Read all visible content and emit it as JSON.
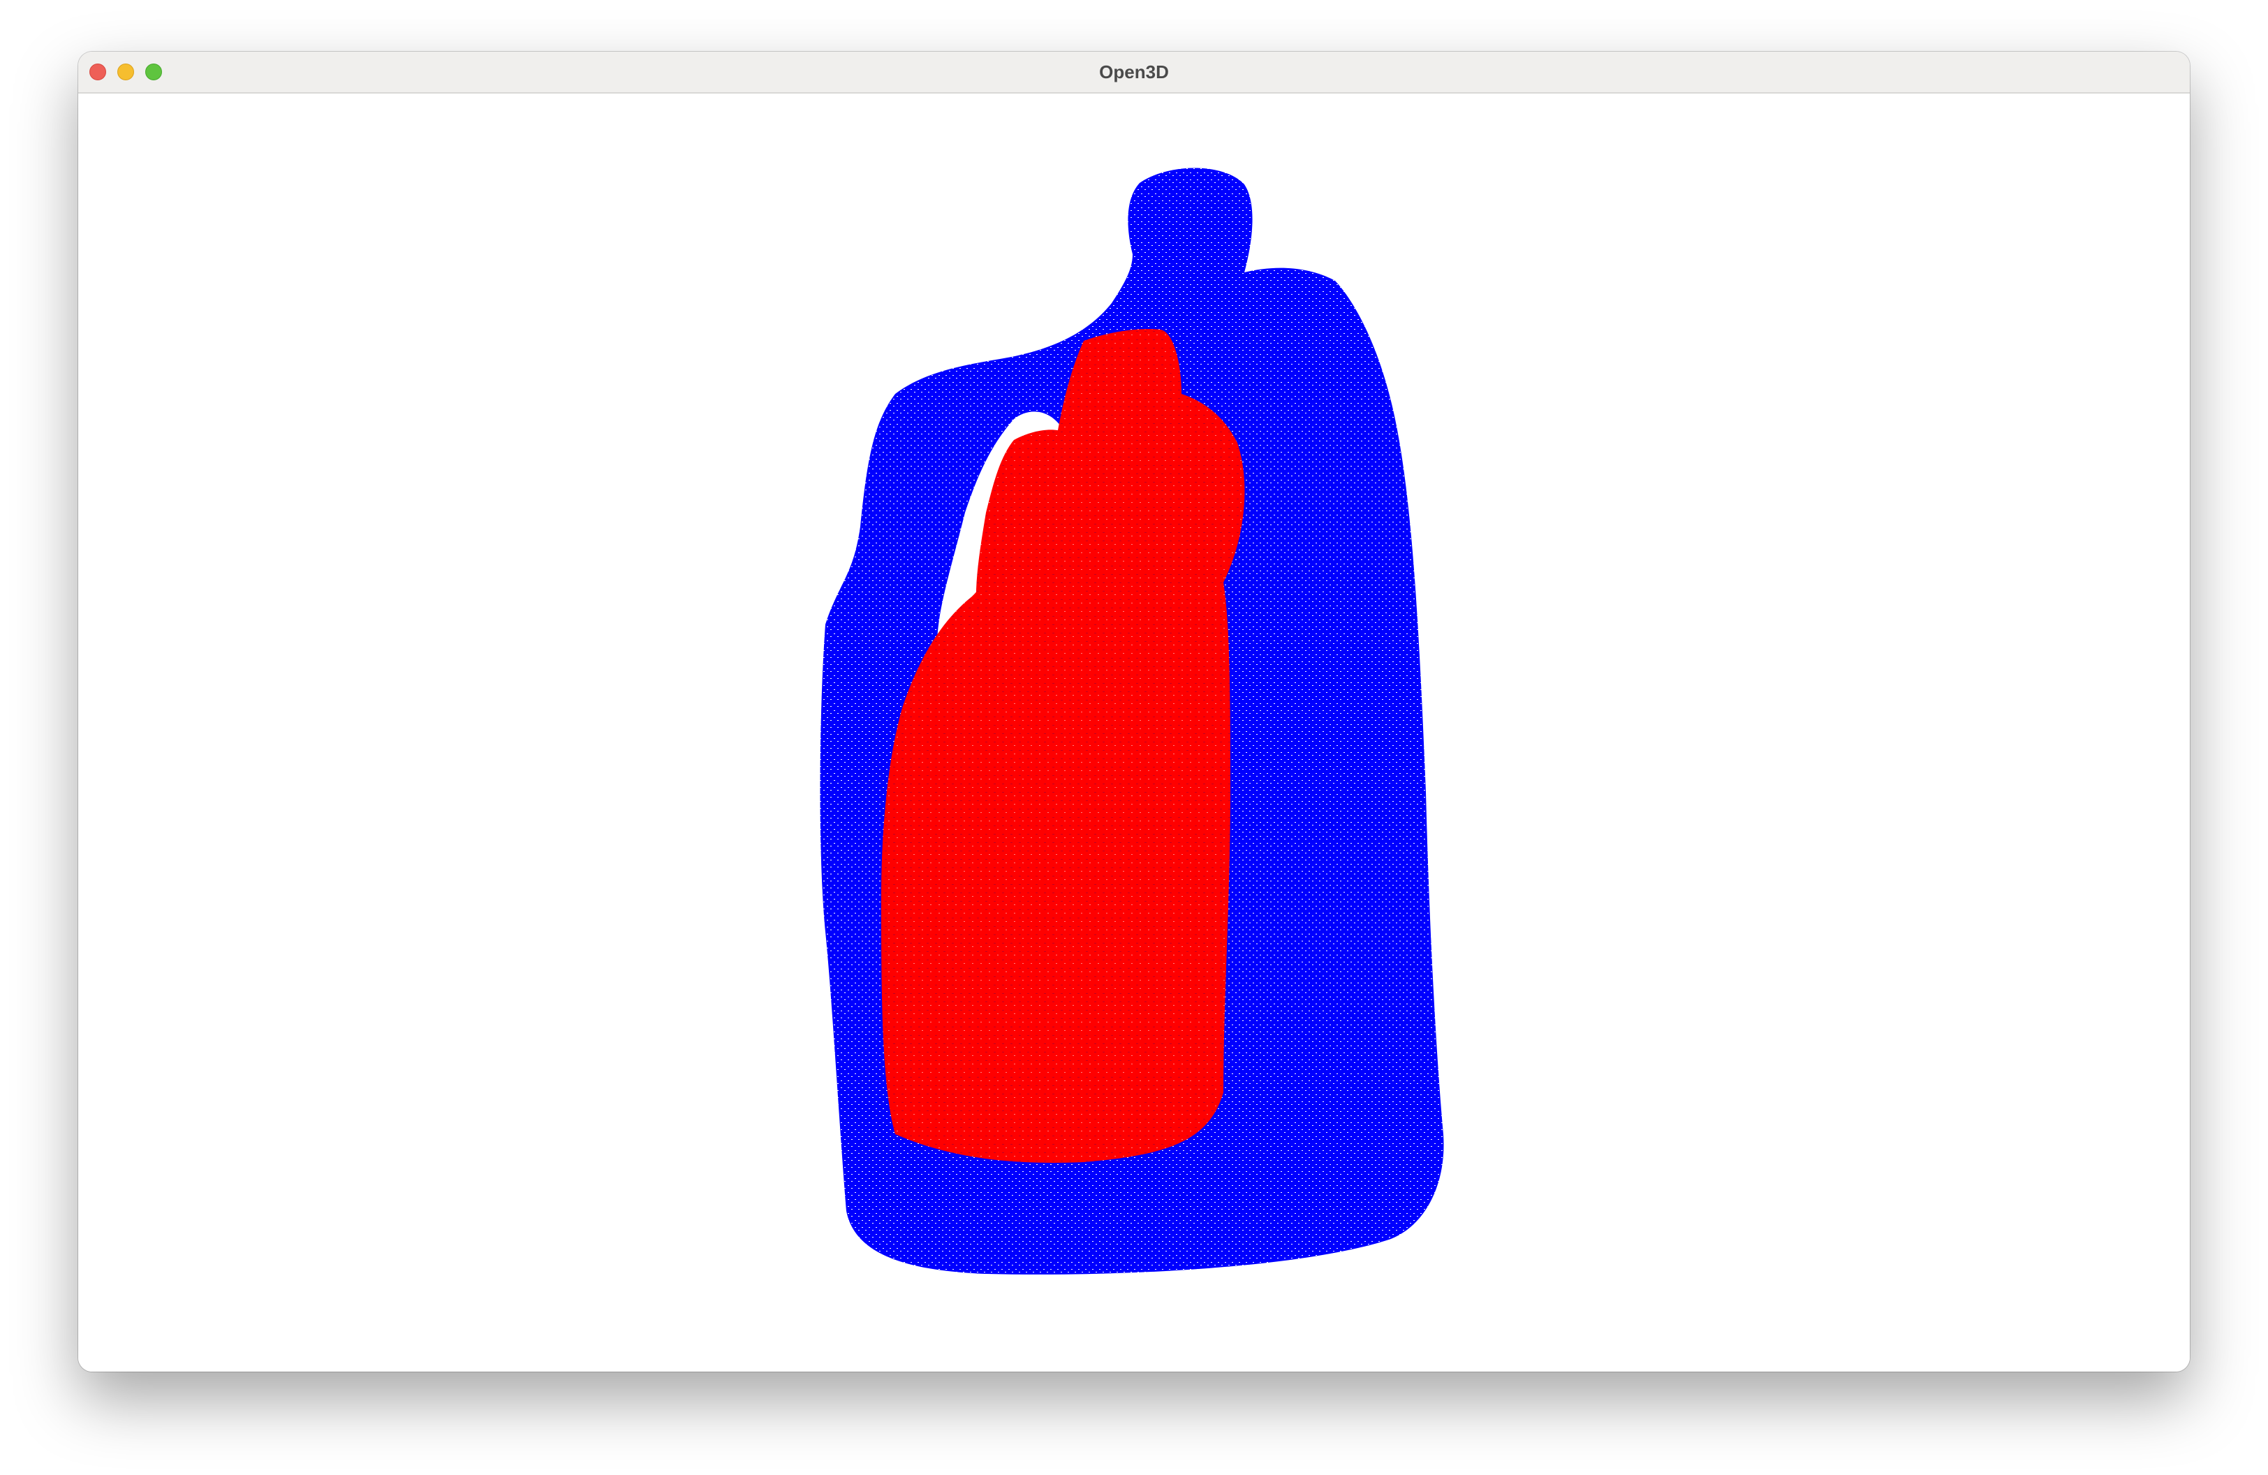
{
  "window": {
    "title": "Open3D"
  },
  "scene": {
    "outer_cloud_color": "#0000ff",
    "inner_cloud_color": "#ff0000",
    "background_color": "#ffffff"
  }
}
